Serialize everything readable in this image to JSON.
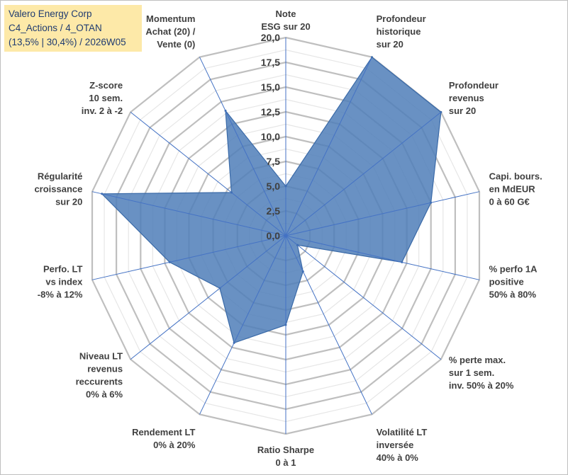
{
  "legend": {
    "line1": "Valero Energy Corp",
    "line2": "C4_Actions / 4_OTAN",
    "line3": "(13,5% | 30,4%) / 2026W05"
  },
  "chart_data": {
    "type": "radar",
    "title": "",
    "rmax": 20,
    "ticks": [
      "0,0",
      "2,5",
      "5,0",
      "7,5",
      "10,0",
      "12,5",
      "15,0",
      "17,5",
      "20,0"
    ],
    "tick_values": [
      0,
      2.5,
      5,
      7.5,
      10,
      12.5,
      15,
      17.5,
      20
    ],
    "axes": [
      {
        "label": [
          "Note",
          "ESG sur 20"
        ],
        "value": 5.0
      },
      {
        "label": [
          "Profondeur",
          "historique",
          "sur 20"
        ],
        "value": 20.0
      },
      {
        "label": [
          "Profondeur",
          "revenus",
          "sur 20"
        ],
        "value": 20.0
      },
      {
        "label": [
          "Capi. bours.",
          "en MdEUR",
          "0 à 60 G€"
        ],
        "value": 15.0
      },
      {
        "label": [
          "% perfo 1A",
          "positive",
          "50% à 80%"
        ],
        "value": 12.0
      },
      {
        "label": [
          "% perte max.",
          "sur 1 sem.",
          "inv. 50% à 20%"
        ],
        "value": 1.5
      },
      {
        "label": [
          "Volatilité LT",
          "inversée",
          "40% à 0%"
        ],
        "value": 4.0
      },
      {
        "label": [
          "Ratio Sharpe",
          "0 à 1"
        ],
        "value": 9.0
      },
      {
        "label": [
          "Rendement LT",
          "0% à 20%"
        ],
        "value": 12.0
      },
      {
        "label": [
          "Niveau LT",
          "revenus",
          "reccurents",
          "0% à 6%"
        ],
        "value": 8.5
      },
      {
        "label": [
          "Perfo. LT",
          "vs index",
          "-8% à 12%"
        ],
        "value": 12.0
      },
      {
        "label": [
          "Régularité",
          "croissance",
          "sur 20"
        ],
        "value": 19.0
      },
      {
        "label": [
          "Z-score",
          "10 sem.",
          "inv. 2 à -2"
        ],
        "value": 7.0
      },
      {
        "label": [
          "Momentum",
          "Achat (20) /",
          "Vente (0)"
        ],
        "value": 14.0
      }
    ],
    "colors": {
      "fill": "#4f7eb8",
      "stroke": "#3a6aa8",
      "grid_major": "#bfbfbf",
      "grid_minor": "#e6e6e6",
      "spoke": "#4472c4"
    }
  }
}
